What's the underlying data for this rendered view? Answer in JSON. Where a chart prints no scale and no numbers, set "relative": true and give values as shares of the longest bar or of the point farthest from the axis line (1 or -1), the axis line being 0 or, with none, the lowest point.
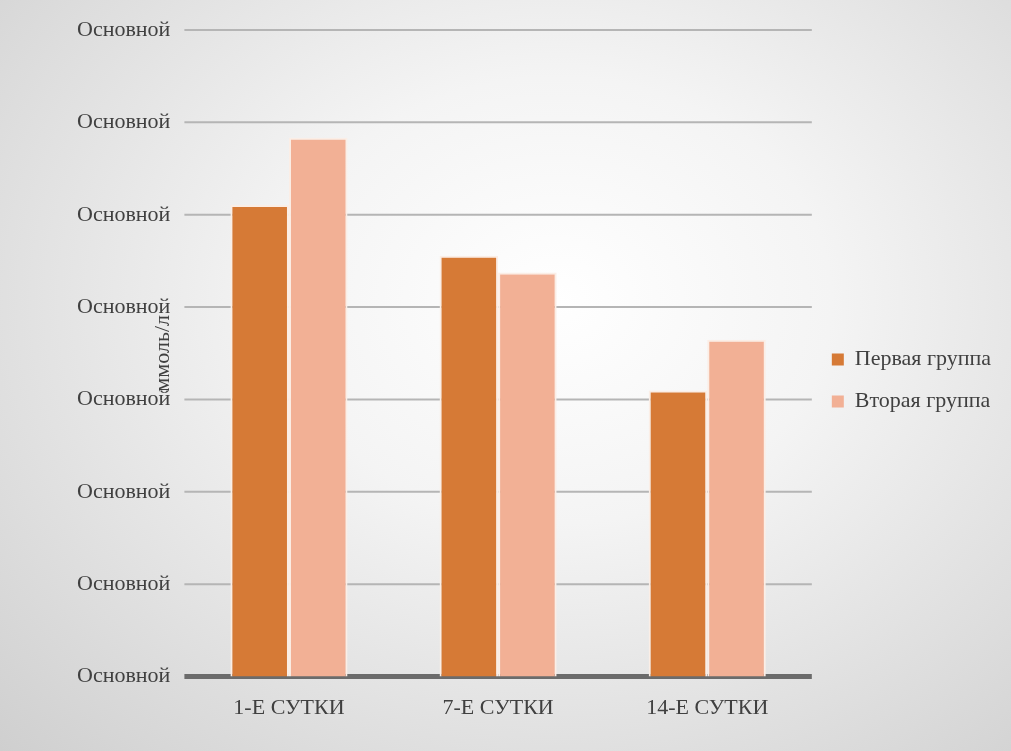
{
  "chart_data": {
    "type": "bar",
    "ylabel": "ммоль/л",
    "relative": true,
    "categories": [
      "1-Е СУТКИ",
      "7-Е СУТКИ",
      "14-Е СУТКИ"
    ],
    "series": [
      {
        "name": "Первая группа",
        "color": "#d67a36",
        "values": [
          0.875,
          0.781,
          0.531
        ]
      },
      {
        "name": "Вторая группа",
        "color": "#f2b095",
        "values": [
          1,
          0.75,
          0.625
        ]
      }
    ],
    "annotations": [
      "Основной",
      "Основной",
      "Основной",
      "Основной",
      "Основной",
      "Основной",
      "Основной",
      "Основной"
    ],
    "grid": "y",
    "legend": "right"
  }
}
